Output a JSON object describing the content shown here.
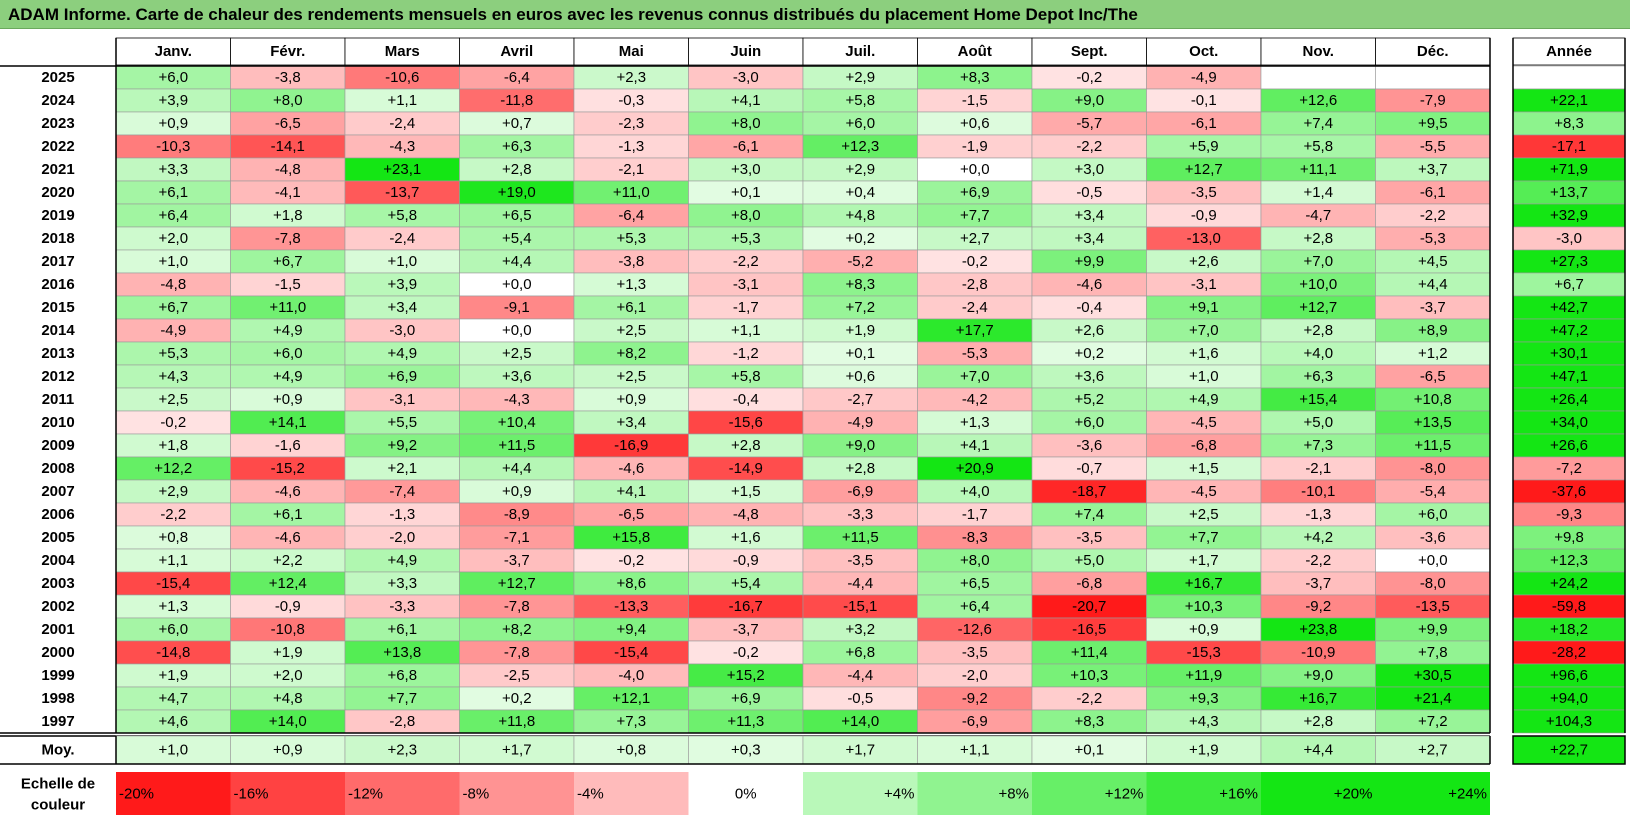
{
  "title": "ADAM Informe. Carte de chaleur des rendements mensuels en euros avec les revenus connus distribués du placement Home Depot Inc/The",
  "chart_data": {
    "type": "heatmap",
    "months": [
      "Janv.",
      "Févr.",
      "Mars",
      "Avril",
      "Mai",
      "Juin",
      "Juil.",
      "Août",
      "Sept.",
      "Oct.",
      "Nov.",
      "Déc."
    ],
    "year_header": "Année",
    "rows": [
      {
        "year": "2025",
        "m": [
          "+6,0",
          "-3,8",
          "-10,6",
          "-6,4",
          "+2,3",
          "-3,0",
          "+2,9",
          "+8,3",
          "-0,2",
          "-4,9",
          "",
          ""
        ],
        "y": ""
      },
      {
        "year": "2024",
        "m": [
          "+3,9",
          "+8,0",
          "+1,1",
          "-11,8",
          "-0,3",
          "+4,1",
          "+5,8",
          "-1,5",
          "+9,0",
          "-0,1",
          "+12,6",
          "-7,9"
        ],
        "y": "+22,1"
      },
      {
        "year": "2023",
        "m": [
          "+0,9",
          "-6,5",
          "-2,4",
          "+0,7",
          "-2,3",
          "+8,0",
          "+6,0",
          "+0,6",
          "-5,7",
          "-6,1",
          "+7,4",
          "+9,5"
        ],
        "y": "+8,3"
      },
      {
        "year": "2022",
        "m": [
          "-10,3",
          "-14,1",
          "-4,3",
          "+6,3",
          "-1,3",
          "-6,1",
          "+12,3",
          "-1,9",
          "-2,2",
          "+5,9",
          "+5,8",
          "-5,5"
        ],
        "y": "-17,1"
      },
      {
        "year": "2021",
        "m": [
          "+3,3",
          "-4,8",
          "+23,1",
          "+2,8",
          "-2,1",
          "+3,0",
          "+2,9",
          "+0,0",
          "+3,0",
          "+12,7",
          "+11,1",
          "+3,7"
        ],
        "y": "+71,9"
      },
      {
        "year": "2020",
        "m": [
          "+6,1",
          "-4,1",
          "-13,7",
          "+19,0",
          "+11,0",
          "+0,1",
          "+0,4",
          "+6,9",
          "-0,5",
          "-3,5",
          "+1,4",
          "-6,1"
        ],
        "y": "+13,7"
      },
      {
        "year": "2019",
        "m": [
          "+6,4",
          "+1,8",
          "+5,8",
          "+6,5",
          "-6,4",
          "+8,0",
          "+4,8",
          "+7,7",
          "+3,4",
          "-0,9",
          "-4,7",
          "-2,2"
        ],
        "y": "+32,9"
      },
      {
        "year": "2018",
        "m": [
          "+2,0",
          "-7,8",
          "-2,4",
          "+5,4",
          "+5,3",
          "+5,3",
          "+0,2",
          "+2,7",
          "+3,4",
          "-13,0",
          "+2,8",
          "-5,3"
        ],
        "y": "-3,0"
      },
      {
        "year": "2017",
        "m": [
          "+1,0",
          "+6,7",
          "+1,0",
          "+4,4",
          "-3,8",
          "-2,2",
          "-5,2",
          "-0,2",
          "+9,9",
          "+2,6",
          "+7,0",
          "+4,5"
        ],
        "y": "+27,3"
      },
      {
        "year": "2016",
        "m": [
          "-4,8",
          "-1,5",
          "+3,9",
          "+0,0",
          "+1,3",
          "-3,1",
          "+8,3",
          "-2,8",
          "-4,6",
          "-3,1",
          "+10,0",
          "+4,4"
        ],
        "y": "+6,7"
      },
      {
        "year": "2015",
        "m": [
          "+6,7",
          "+11,0",
          "+3,4",
          "-9,1",
          "+6,1",
          "-1,7",
          "+7,2",
          "-2,4",
          "-0,4",
          "+9,1",
          "+12,7",
          "-3,7"
        ],
        "y": "+42,7"
      },
      {
        "year": "2014",
        "m": [
          "-4,9",
          "+4,9",
          "-3,0",
          "+0,0",
          "+2,5",
          "+1,1",
          "+1,9",
          "+17,7",
          "+2,6",
          "+7,0",
          "+2,8",
          "+8,9"
        ],
        "y": "+47,2"
      },
      {
        "year": "2013",
        "m": [
          "+5,3",
          "+6,0",
          "+4,9",
          "+2,5",
          "+8,2",
          "-1,2",
          "+0,1",
          "-5,3",
          "+0,2",
          "+1,6",
          "+4,0",
          "+1,2"
        ],
        "y": "+30,1"
      },
      {
        "year": "2012",
        "m": [
          "+4,3",
          "+4,9",
          "+6,9",
          "+3,6",
          "+2,5",
          "+5,8",
          "+0,6",
          "+7,0",
          "+3,6",
          "+1,0",
          "+6,3",
          "-6,5"
        ],
        "y": "+47,1"
      },
      {
        "year": "2011",
        "m": [
          "+2,5",
          "+0,9",
          "-3,1",
          "-4,3",
          "+0,9",
          "-0,4",
          "-2,7",
          "-4,2",
          "+5,2",
          "+4,9",
          "+15,4",
          "+10,8"
        ],
        "y": "+26,4"
      },
      {
        "year": "2010",
        "m": [
          "-0,2",
          "+14,1",
          "+5,5",
          "+10,4",
          "+3,4",
          "-15,6",
          "-4,9",
          "+1,3",
          "+6,0",
          "-4,5",
          "+5,0",
          "+13,5"
        ],
        "y": "+34,0"
      },
      {
        "year": "2009",
        "m": [
          "+1,8",
          "-1,6",
          "+9,2",
          "+11,5",
          "-16,9",
          "+2,8",
          "+9,0",
          "+4,1",
          "-3,6",
          "-6,8",
          "+7,3",
          "+11,5"
        ],
        "y": "+26,6"
      },
      {
        "year": "2008",
        "m": [
          "+12,2",
          "-15,2",
          "+2,1",
          "+4,4",
          "-4,6",
          "-14,9",
          "+2,8",
          "+20,9",
          "-0,7",
          "+1,5",
          "-2,1",
          "-8,0"
        ],
        "y": "-7,2"
      },
      {
        "year": "2007",
        "m": [
          "+2,9",
          "-4,6",
          "-7,4",
          "+0,9",
          "+4,1",
          "+1,5",
          "-6,9",
          "+4,0",
          "-18,7",
          "-4,5",
          "-10,1",
          "-5,4"
        ],
        "y": "-37,6"
      },
      {
        "year": "2006",
        "m": [
          "-2,2",
          "+6,1",
          "-1,3",
          "-8,9",
          "-6,5",
          "-4,8",
          "-3,3",
          "-1,7",
          "+7,4",
          "+2,5",
          "-1,3",
          "+6,0"
        ],
        "y": "-9,3"
      },
      {
        "year": "2005",
        "m": [
          "+0,8",
          "-4,6",
          "-2,0",
          "-7,1",
          "+15,8",
          "+1,6",
          "+11,5",
          "-8,3",
          "-3,5",
          "+7,7",
          "+4,2",
          "-3,6"
        ],
        "y": "+9,8"
      },
      {
        "year": "2004",
        "m": [
          "+1,1",
          "+2,2",
          "+4,9",
          "-3,7",
          "-0,2",
          "-0,9",
          "-3,5",
          "+8,0",
          "+5,0",
          "+1,7",
          "-2,2",
          "+0,0"
        ],
        "y": "+12,3"
      },
      {
        "year": "2003",
        "m": [
          "-15,4",
          "+12,4",
          "+3,3",
          "+12,7",
          "+8,6",
          "+5,4",
          "-4,4",
          "+6,5",
          "-6,8",
          "+16,7",
          "-3,7",
          "-8,0"
        ],
        "y": "+24,2"
      },
      {
        "year": "2002",
        "m": [
          "+1,3",
          "-0,9",
          "-3,3",
          "-7,8",
          "-13,3",
          "-16,7",
          "-15,1",
          "+6,4",
          "-20,7",
          "+10,3",
          "-9,2",
          "-13,5"
        ],
        "y": "-59,8"
      },
      {
        "year": "2001",
        "m": [
          "+6,0",
          "-10,8",
          "+6,1",
          "+8,2",
          "+9,4",
          "-3,7",
          "+3,2",
          "-12,6",
          "-16,5",
          "+0,9",
          "+23,8",
          "+9,9"
        ],
        "y": "+18,2"
      },
      {
        "year": "2000",
        "m": [
          "-14,8",
          "+1,9",
          "+13,8",
          "-7,8",
          "-15,4",
          "-0,2",
          "+6,8",
          "-3,5",
          "+11,4",
          "-15,3",
          "-10,9",
          "+7,8"
        ],
        "y": "-28,2"
      },
      {
        "year": "1999",
        "m": [
          "+1,9",
          "+2,0",
          "+6,8",
          "-2,5",
          "-4,0",
          "+15,2",
          "-4,4",
          "-2,0",
          "+10,3",
          "+11,9",
          "+9,0",
          "+30,5"
        ],
        "y": "+96,6"
      },
      {
        "year": "1998",
        "m": [
          "+4,7",
          "+4,8",
          "+7,7",
          "+0,2",
          "+12,1",
          "+6,9",
          "-0,5",
          "-9,2",
          "-2,2",
          "+9,3",
          "+16,7",
          "+21,4"
        ],
        "y": "+94,0"
      },
      {
        "year": "1997",
        "m": [
          "+4,6",
          "+14,0",
          "-2,8",
          "+11,8",
          "+7,3",
          "+11,3",
          "+14,0",
          "-6,9",
          "+8,3",
          "+4,3",
          "+2,8",
          "+7,2"
        ],
        "y": "+104,3"
      }
    ],
    "average": {
      "label": "Moy.",
      "m": [
        "+1,0",
        "+0,9",
        "+2,3",
        "+1,7",
        "+0,8",
        "+0,3",
        "+1,7",
        "+1,1",
        "+0,1",
        "+1,9",
        "+4,4",
        "+2,7"
      ],
      "y": "+22,7"
    },
    "scale": {
      "label_line1": "Echelle de",
      "label_line2": "couleur",
      "steps": [
        {
          "label": "-20%",
          "value": -20
        },
        {
          "label": "-16%",
          "value": -16
        },
        {
          "label": "-12%",
          "value": -12
        },
        {
          "label": "-8%",
          "value": -8
        },
        {
          "label": "-4%",
          "value": -4
        },
        {
          "label": "0%",
          "value": 0
        },
        {
          "label": "+4%",
          "value": 4
        },
        {
          "label": "+8%",
          "value": 8
        },
        {
          "label": "+12%",
          "value": 12
        },
        {
          "label": "+16%",
          "value": 16
        },
        {
          "label": "+20%",
          "value": 20
        },
        {
          "label": "+24%",
          "value": 24
        }
      ]
    },
    "colors": {
      "negative_max": "#ff1a1a",
      "neutral": "#ffffff",
      "positive_max": "#14e614"
    }
  }
}
